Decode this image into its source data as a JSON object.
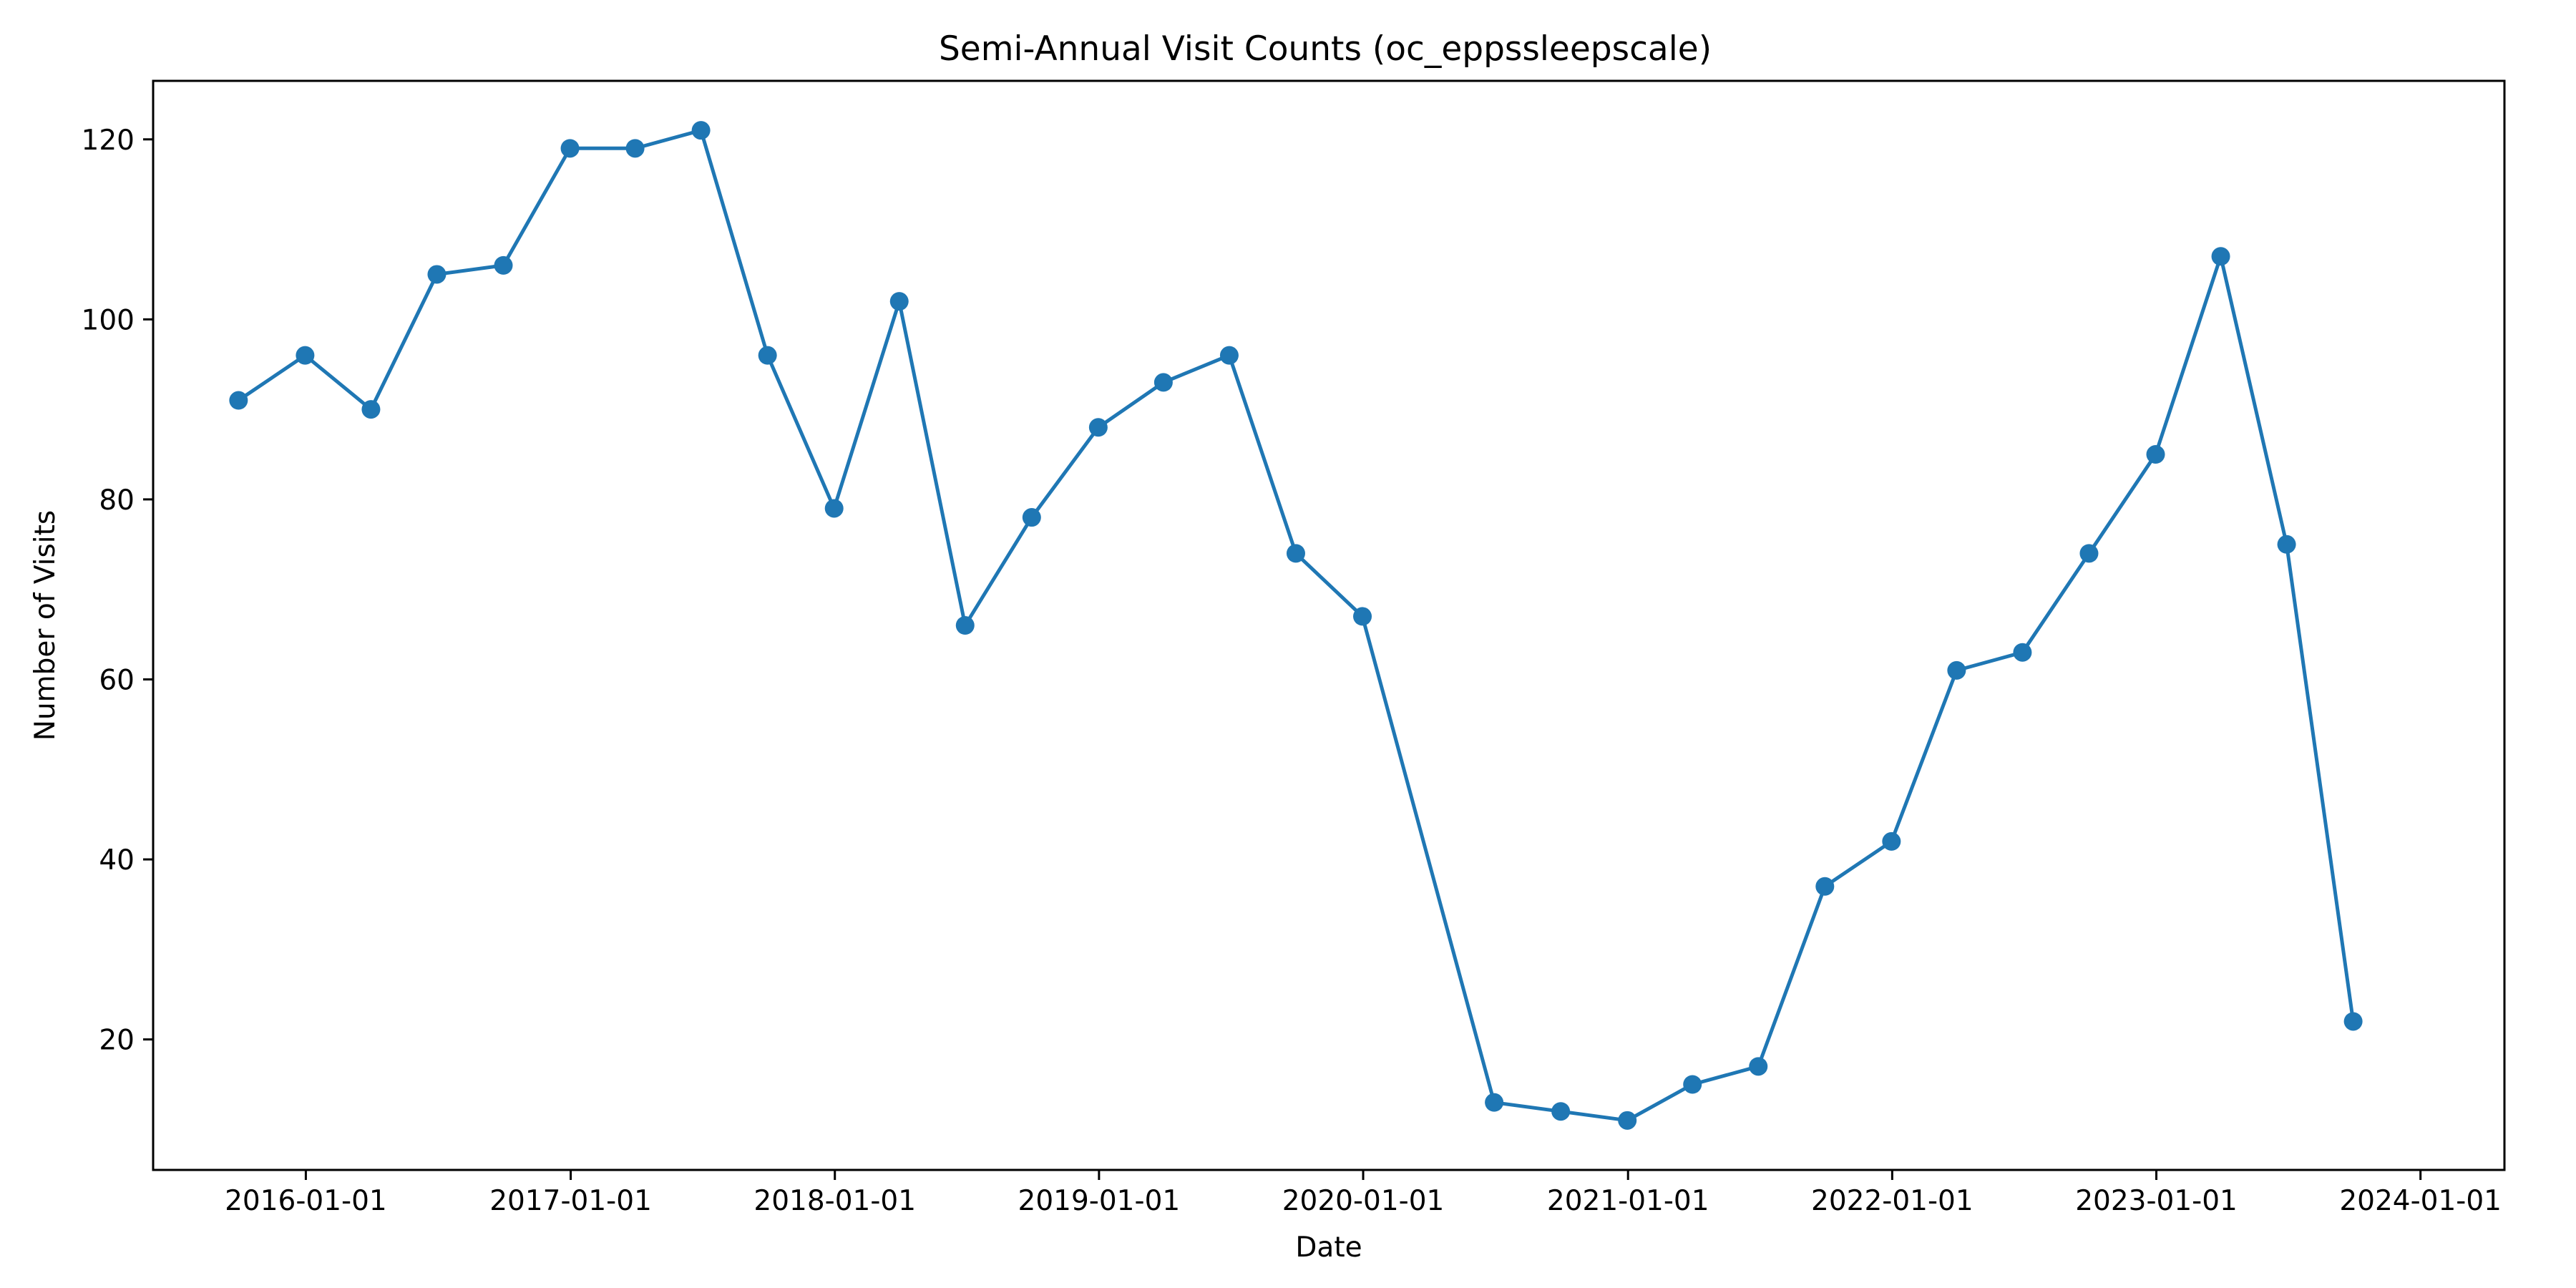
{
  "chart_data": {
    "type": "line",
    "title": "Semi-Annual Visit Counts (oc_eppssleepscale)",
    "xlabel": "Date",
    "ylabel": "Number of Visits",
    "grid": false,
    "x_axis_type": "date",
    "xlim": [
      "2015-06-04",
      "2024-04-26"
    ],
    "ylim": [
      5.5,
      126.5
    ],
    "x_ticks": [
      "2016-01-01",
      "2017-01-01",
      "2018-01-01",
      "2019-01-01",
      "2020-01-01",
      "2021-01-01",
      "2022-01-01",
      "2023-01-01",
      "2024-01-01"
    ],
    "y_ticks": [
      20,
      40,
      60,
      80,
      100,
      120
    ],
    "colors": {
      "series": "#1f77b4"
    },
    "series": [
      {
        "x": [
          "2015-09-30",
          "2015-12-31",
          "2016-03-31",
          "2016-06-30",
          "2016-09-30",
          "2016-12-31",
          "2017-03-31",
          "2017-06-30",
          "2017-09-30",
          "2017-12-31",
          "2018-03-31",
          "2018-06-30",
          "2018-09-30",
          "2018-12-31",
          "2019-03-31",
          "2019-06-30",
          "2019-09-30",
          "2019-12-31",
          "2020-06-30",
          "2020-09-30",
          "2020-12-31",
          "2021-03-31",
          "2021-06-30",
          "2021-09-30",
          "2021-12-31",
          "2022-03-31",
          "2022-06-30",
          "2022-09-30",
          "2022-12-31",
          "2023-03-31",
          "2023-06-30",
          "2023-09-30"
        ],
        "y": [
          91,
          96,
          90,
          105,
          106,
          119,
          119,
          121,
          96,
          79,
          102,
          66,
          78,
          88,
          93,
          96,
          74,
          67,
          13,
          12,
          11,
          15,
          17,
          37,
          42,
          61,
          63,
          74,
          85,
          107,
          75,
          22
        ]
      }
    ]
  }
}
